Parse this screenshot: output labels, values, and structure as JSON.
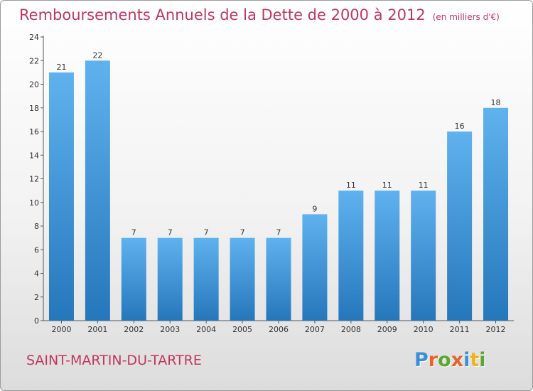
{
  "title": "Remboursements Annuels de la Dette de 2000 à 2012",
  "unit": "(en milliers d'€)",
  "commune": "SAINT-MARTIN-DU-TARTRE",
  "logo": {
    "letters": [
      "P",
      "r",
      "o",
      "x",
      "i",
      "t",
      "i"
    ],
    "colors": [
      "#3a8fd8",
      "#e8622c",
      "#5aa832",
      "#e8622c",
      "#3a8fd8",
      "#f0b21a",
      "#5aa832"
    ]
  },
  "colors": {
    "accent": "#c0365e",
    "bar_top": "#5fb2ee",
    "bar_bottom": "#2577bb"
  },
  "chart_data": {
    "type": "bar",
    "categories": [
      "2000",
      "2001",
      "2002",
      "2003",
      "2004",
      "2005",
      "2006",
      "2007",
      "2008",
      "2009",
      "2010",
      "2011",
      "2012"
    ],
    "values": [
      21,
      22,
      7,
      7,
      7,
      7,
      7,
      9,
      11,
      11,
      11,
      16,
      18
    ],
    "ylim": [
      0,
      24
    ],
    "yticks": [
      0,
      2,
      4,
      6,
      8,
      10,
      12,
      14,
      16,
      18,
      20,
      22,
      24
    ],
    "grid": false
  }
}
